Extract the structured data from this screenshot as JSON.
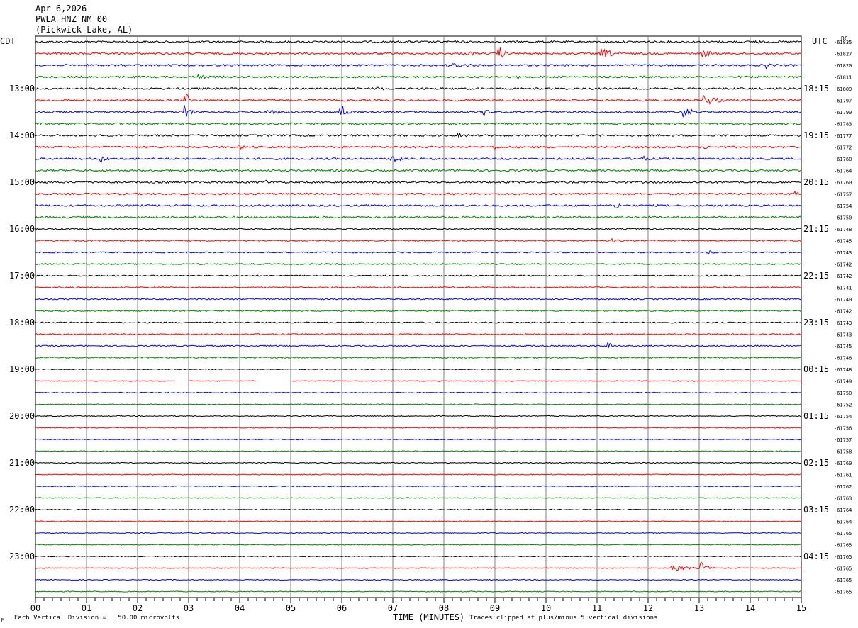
{
  "header": {
    "date": "Apr 6,2026",
    "station": "PWLA HNZ NM 00",
    "location": "(Pickwick Lake, AL)"
  },
  "left_timezone": "CDT",
  "right_timezone": "UTC",
  "dc_label": "DC",
  "footer": {
    "scale_note": "Each Vertical Division =   50.00 microvolts",
    "xlabel": "TIME (MINUTES)",
    "clip_note": "Traces clipped at plus/minus 5 vertical divisions",
    "corner_mark": "M"
  },
  "chart_data": {
    "type": "line",
    "x_range_minutes": [
      0,
      15
    ],
    "x_tick_labels": [
      "00",
      "01",
      "02",
      "03",
      "04",
      "05",
      "06",
      "07",
      "08",
      "09",
      "10",
      "11",
      "12",
      "13",
      "14",
      "15"
    ],
    "grid": true,
    "trace_colors": [
      "#000000",
      "#ff0000",
      "#0000ff",
      "#007f00"
    ],
    "trace_count": 48,
    "left_hour_labels": [
      "13:00",
      "14:00",
      "15:00",
      "16:00",
      "17:00",
      "18:00",
      "19:00",
      "20:00",
      "21:00",
      "22:00",
      "23:00"
    ],
    "right_hour_labels": [
      "18:15",
      "19:15",
      "20:15",
      "21:15",
      "22:15",
      "23:15",
      "00:15",
      "01:15",
      "02:15",
      "03:15",
      "04:15"
    ],
    "dc_offsets": [
      "-61835",
      "-61827",
      "-61820",
      "-61811",
      "-61809",
      "-61797",
      "-61790",
      "-61783",
      "-61777",
      "-61772",
      "-61768",
      "-61764",
      "-61760",
      "-61757",
      "-61754",
      "-61750",
      "-61748",
      "-61745",
      "-61743",
      "-61742",
      "-61742",
      "-61741",
      "-61740",
      "-61742",
      "-61743",
      "-61743",
      "-61745",
      "-61746",
      "-61748",
      "-61749",
      "-61750",
      "-61752",
      "-61754",
      "-61756",
      "-61757",
      "-61758",
      "-61760",
      "-61761",
      "-61762",
      "-61763",
      "-61764",
      "-61764",
      "-61765",
      "-61765",
      "-61765",
      "-61765",
      "-61765",
      "-61765"
    ],
    "data_gaps": [
      {
        "trace": 29,
        "start_min": 2.72,
        "end_min": 2.98
      },
      {
        "trace": 29,
        "start_min": 4.32,
        "end_min": 5.0
      }
    ],
    "events": [
      {
        "trace": 0,
        "min": 14.1,
        "amp": 3,
        "dur": 0.5
      },
      {
        "trace": 1,
        "min": 9.1,
        "amp": 9,
        "dur": 0.25
      },
      {
        "trace": 1,
        "min": 11.1,
        "amp": 7,
        "dur": 0.7
      },
      {
        "trace": 1,
        "min": 13.1,
        "amp": 6,
        "dur": 0.4
      },
      {
        "trace": 1,
        "min": 8.5,
        "amp": 3,
        "dur": 0.6
      },
      {
        "trace": 2,
        "min": 8.1,
        "amp": 4,
        "dur": 1.2
      },
      {
        "trace": 2,
        "min": 14.3,
        "amp": 5,
        "dur": 0.3
      },
      {
        "trace": 3,
        "min": 3.2,
        "amp": 4,
        "dur": 0.4
      },
      {
        "trace": 3,
        "min": 9.5,
        "amp": 3,
        "dur": 0.3
      },
      {
        "trace": 4,
        "min": 6.7,
        "amp": 3,
        "dur": 0.5
      },
      {
        "trace": 5,
        "min": 2.95,
        "amp": 10,
        "dur": 0.15
      },
      {
        "trace": 5,
        "min": 13.1,
        "amp": 8,
        "dur": 0.6
      },
      {
        "trace": 6,
        "min": 2.95,
        "amp": 12,
        "dur": 0.2
      },
      {
        "trace": 6,
        "min": 6.0,
        "amp": 9,
        "dur": 0.3
      },
      {
        "trace": 6,
        "min": 8.8,
        "amp": 6,
        "dur": 0.3
      },
      {
        "trace": 6,
        "min": 12.7,
        "amp": 8,
        "dur": 0.4
      },
      {
        "trace": 6,
        "min": 4.5,
        "amp": 3,
        "dur": 1.5
      },
      {
        "trace": 8,
        "min": 8.3,
        "amp": 3,
        "dur": 0.6
      },
      {
        "trace": 9,
        "min": 4.0,
        "amp": 3,
        "dur": 0.6
      },
      {
        "trace": 9,
        "min": 9.0,
        "amp": 3,
        "dur": 0.5
      },
      {
        "trace": 9,
        "min": 13.1,
        "amp": 3,
        "dur": 0.3
      },
      {
        "trace": 10,
        "min": 1.3,
        "amp": 5,
        "dur": 0.3
      },
      {
        "trace": 10,
        "min": 7.0,
        "amp": 7,
        "dur": 0.3
      },
      {
        "trace": 10,
        "min": 11.9,
        "amp": 4,
        "dur": 0.3
      },
      {
        "trace": 12,
        "min": 4.5,
        "amp": 3,
        "dur": 0.6
      },
      {
        "trace": 13,
        "min": 14.9,
        "amp": 4,
        "dur": 0.2
      },
      {
        "trace": 14,
        "min": 11.4,
        "amp": 5,
        "dur": 0.15
      },
      {
        "trace": 17,
        "min": 11.3,
        "amp": 3,
        "dur": 0.5
      },
      {
        "trace": 18,
        "min": 13.2,
        "amp": 3,
        "dur": 0.3
      },
      {
        "trace": 26,
        "min": 11.25,
        "amp": 7,
        "dur": 0.1
      },
      {
        "trace": 45,
        "min": 12.5,
        "amp": 5,
        "dur": 0.6
      },
      {
        "trace": 45,
        "min": 13.05,
        "amp": 9,
        "dur": 0.25
      }
    ]
  }
}
